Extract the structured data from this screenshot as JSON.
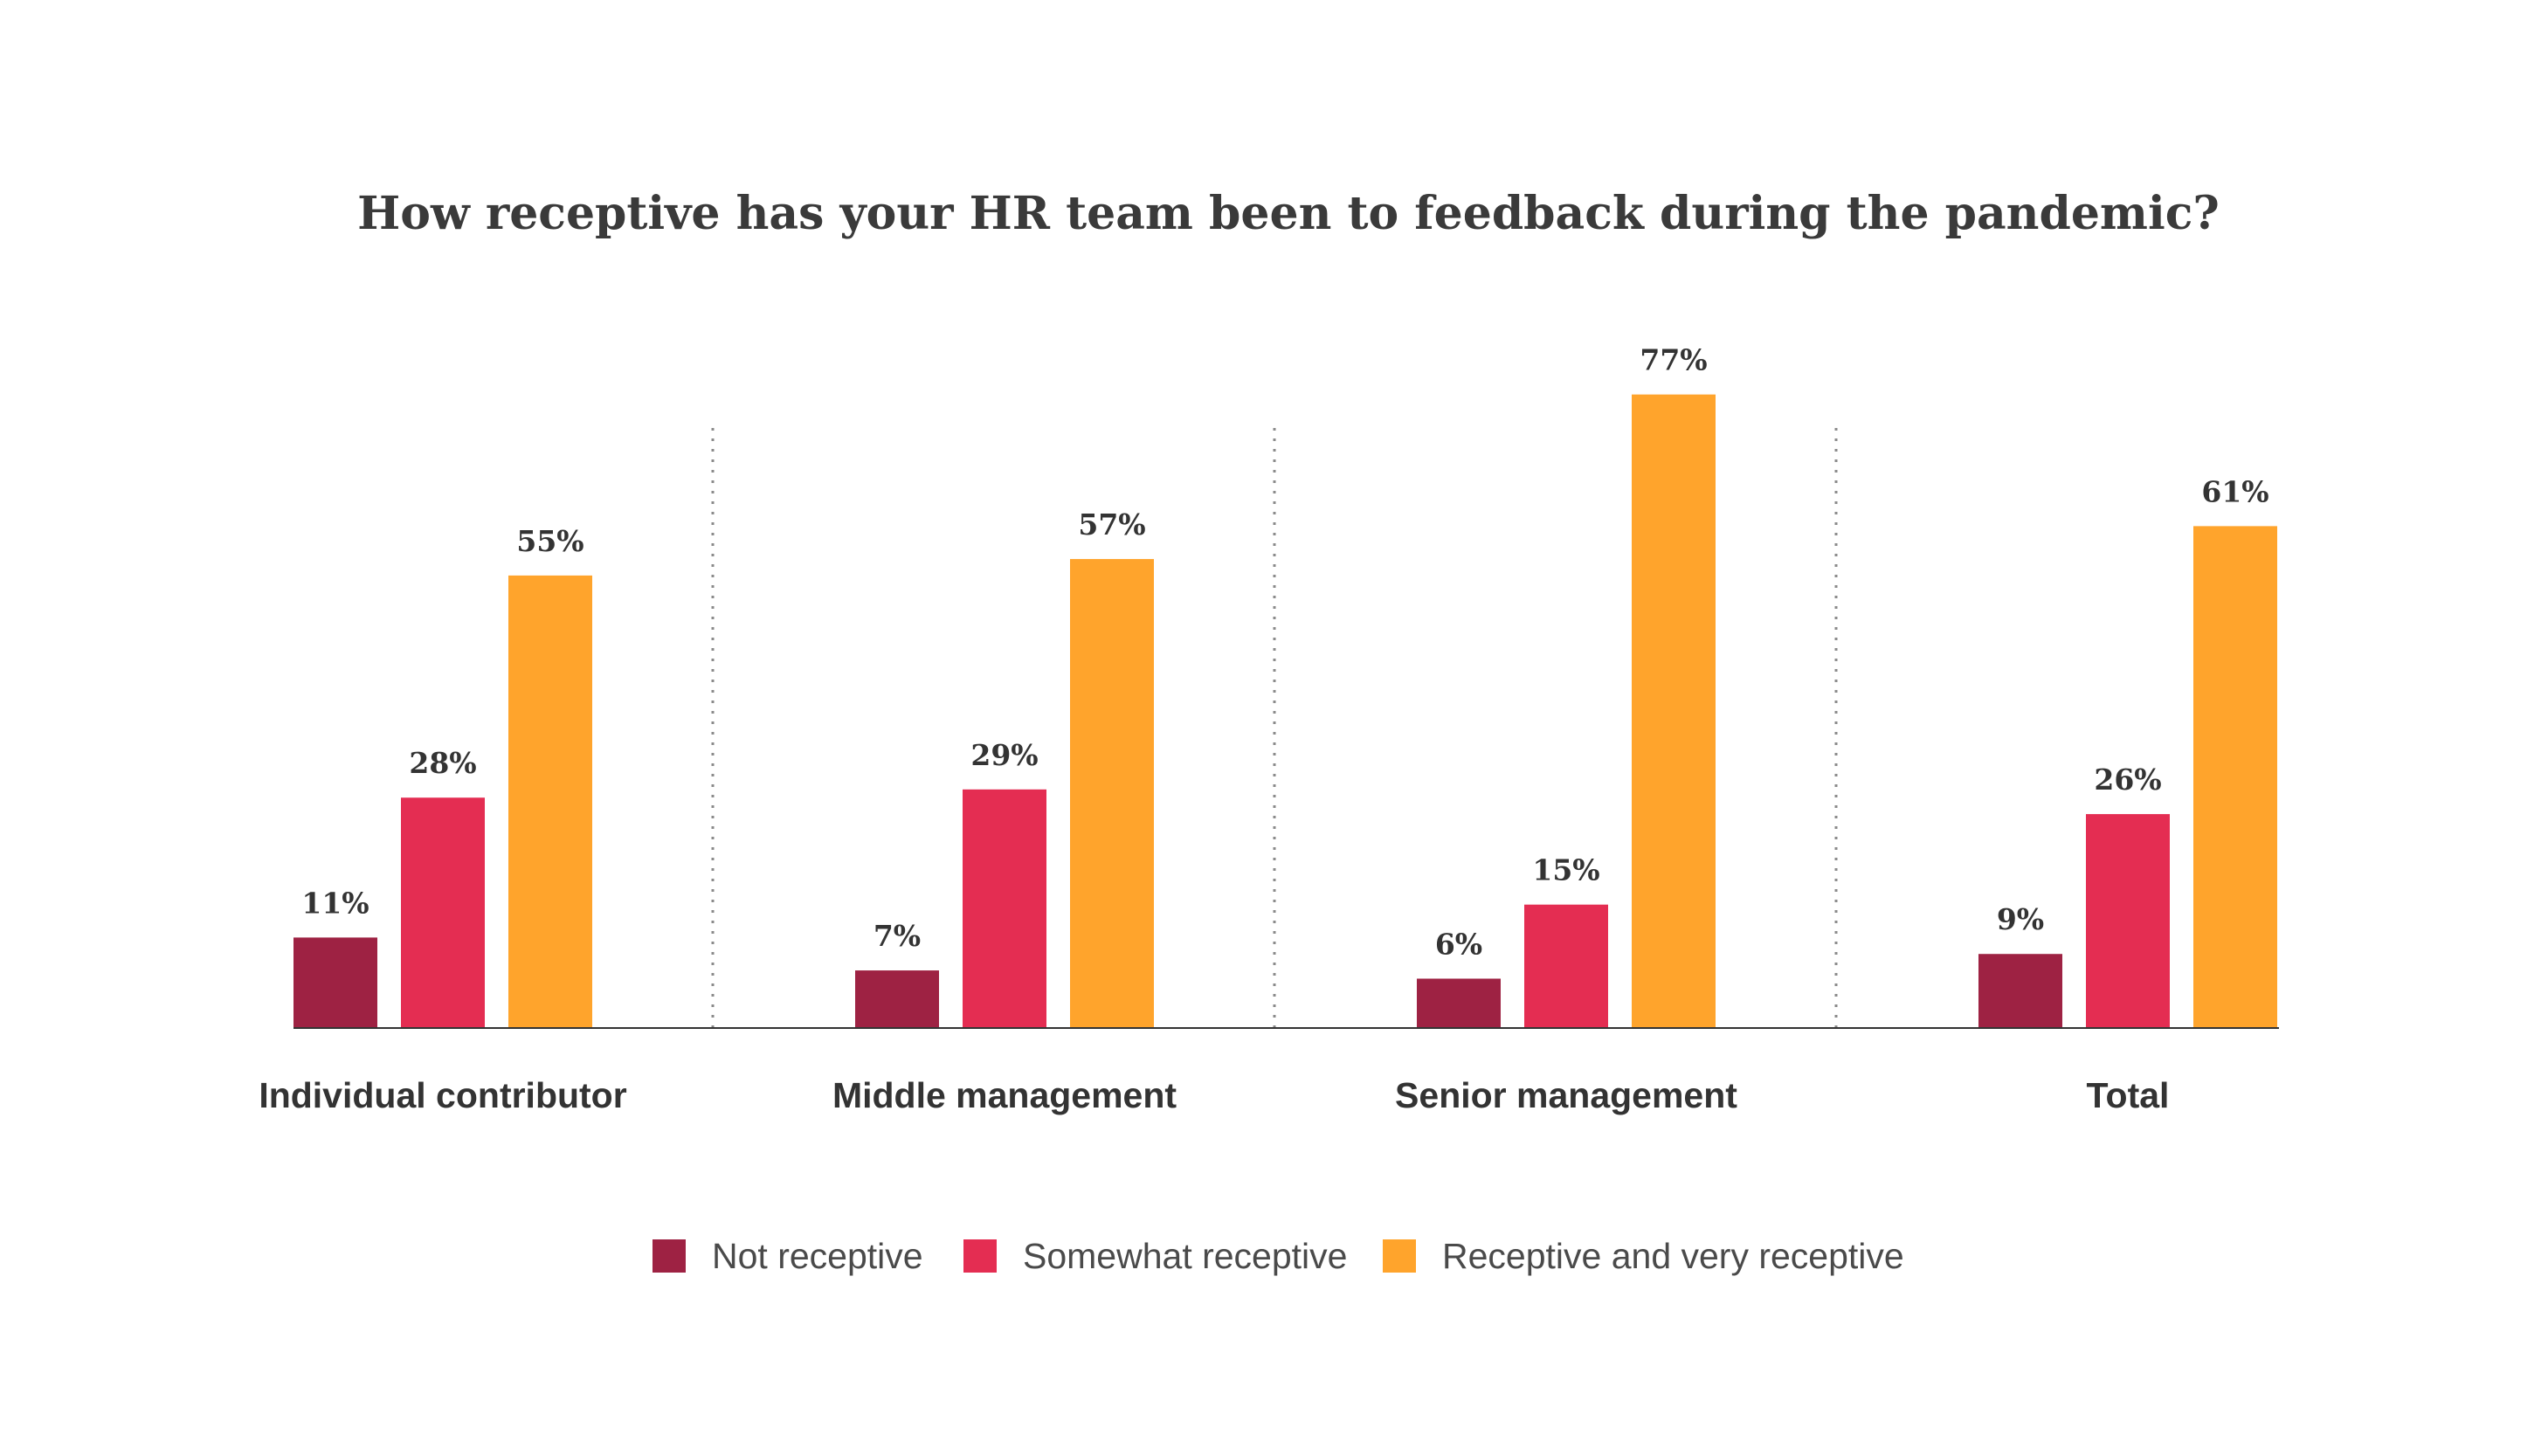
{
  "chart_data": {
    "type": "bar",
    "title": "How receptive has your HR team been to feedback during the pandemic?",
    "categories": [
      "Individual contributor",
      "Middle management",
      "Senior management",
      "Total"
    ],
    "series": [
      {
        "name": "Not receptive",
        "color": "#9e2243",
        "values": [
          11,
          7,
          6,
          9
        ],
        "labels": [
          "11%",
          "7%",
          "6%",
          "9%"
        ]
      },
      {
        "name": "Somewhat receptive",
        "color": "#e42d52",
        "values": [
          28,
          29,
          15,
          26
        ],
        "labels": [
          "28%",
          "29%",
          "15%",
          "26%"
        ]
      },
      {
        "name": "Receptive and very receptive",
        "color": "#ffa42c",
        "values": [
          55,
          57,
          77,
          61
        ],
        "labels": [
          "55%",
          "57%",
          "77%",
          "61%"
        ]
      }
    ],
    "unit": "%",
    "ylim": [
      0,
      77
    ],
    "xlabel": "",
    "ylabel": "",
    "grid": false,
    "legend_position": "bottom",
    "group_separators": "dotted"
  }
}
